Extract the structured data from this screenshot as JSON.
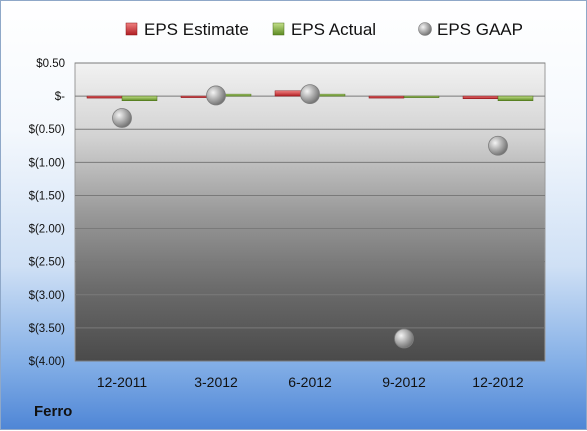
{
  "company": "Ferro",
  "chart_data": {
    "type": "bar",
    "categories": [
      "12-2011",
      "3-2012",
      "6-2012",
      "9-2012",
      "12-2012"
    ],
    "series": [
      {
        "name": "EPS Estimate",
        "kind": "bar",
        "color": "#c0282d",
        "values": [
          -0.03,
          0.0,
          0.08,
          -0.03,
          -0.04
        ]
      },
      {
        "name": "EPS Actual",
        "kind": "bar",
        "color": "#6f9a2e",
        "values": [
          -0.07,
          0.03,
          0.03,
          -0.01,
          -0.07
        ]
      },
      {
        "name": "EPS GAAP",
        "kind": "marker",
        "color": "#a9a9a9",
        "values": [
          -0.33,
          0.01,
          0.03,
          -3.66,
          -0.75
        ]
      }
    ],
    "ylim": [
      -4.0,
      0.5
    ],
    "yticks": [
      0.5,
      0.0,
      -0.5,
      -1.0,
      -1.5,
      -2.0,
      -2.5,
      -3.0,
      -3.5,
      -4.0
    ],
    "ytick_labels": [
      "$0.50",
      "$-",
      "$(0.50)",
      "$(1.00)",
      "$(1.50)",
      "$(2.00)",
      "$(2.50)",
      "$(3.00)",
      "$(3.50)",
      "$(4.00)"
    ],
    "legend_position": "top",
    "grid": true
  }
}
